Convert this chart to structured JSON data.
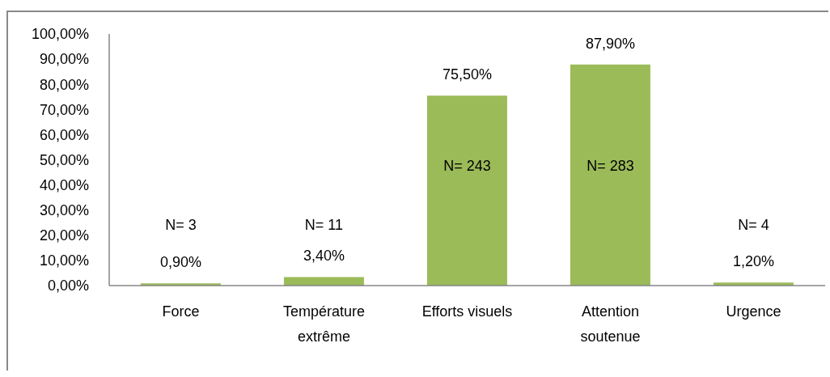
{
  "chart_data": {
    "type": "bar",
    "categories": [
      "Force",
      "Température extrême",
      "Efforts visuels",
      "Attention soutenue",
      "Urgence"
    ],
    "values": [
      0.9,
      3.4,
      75.5,
      87.9,
      1.2
    ],
    "color": "#9bbb59",
    "value_labels": [
      "0,90%",
      "3,40%",
      "75,50%",
      "87,90%",
      "1,20%"
    ],
    "ylim": [
      0,
      100
    ],
    "yticks": [
      {
        "value": 0,
        "label": "0,00%"
      },
      {
        "value": 10,
        "label": "10,00%"
      },
      {
        "value": 20,
        "label": "20,00%"
      },
      {
        "value": 30,
        "label": "30,00%"
      },
      {
        "value": 40,
        "label": "40,00%"
      },
      {
        "value": 50,
        "label": "50,00%"
      },
      {
        "value": 60,
        "label": "60,00%"
      },
      {
        "value": 70,
        "label": "70,00%"
      },
      {
        "value": 80,
        "label": "80,00%"
      },
      {
        "value": 90,
        "label": "90,00%"
      },
      {
        "value": 100,
        "label": "100,00%"
      }
    ],
    "annotations": [
      "N= 3",
      "N= 11",
      "N= 243",
      "N= 283",
      "N= 4"
    ]
  }
}
